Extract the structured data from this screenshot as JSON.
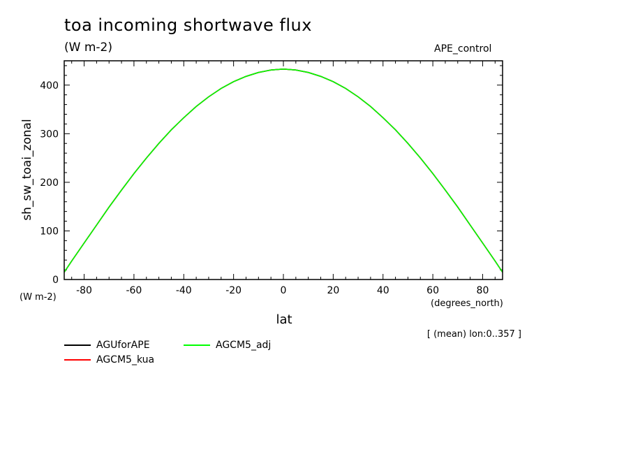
{
  "header": {
    "title": "toa incoming shortwave flux",
    "units": "(W m-2)",
    "experiment": "APE_control"
  },
  "chart_data": {
    "type": "line",
    "xlabel": "lat",
    "x_units": "(degrees_north)",
    "ylabel": "sh_sw_toai_zonal",
    "y_units": "(W m-2)",
    "xlim": [
      -88,
      88
    ],
    "ylim": [
      0,
      450
    ],
    "x_ticks": [
      "-80",
      "-60",
      "-40",
      "-20",
      "0",
      "20",
      "40",
      "60",
      "80"
    ],
    "y_ticks": [
      "0",
      "100",
      "200",
      "300",
      "400"
    ],
    "note": "[ (mean) lon:0..357 ]",
    "legend_placement": "bottom-left",
    "x": [
      -88,
      -85,
      -80,
      -75,
      -70,
      -65,
      -60,
      -55,
      -50,
      -45,
      -40,
      -35,
      -30,
      -25,
      -20,
      -15,
      -10,
      -5,
      0,
      5,
      10,
      15,
      20,
      25,
      30,
      35,
      40,
      45,
      50,
      55,
      60,
      65,
      70,
      75,
      80,
      85,
      88
    ],
    "series": [
      {
        "name": "AGUforAPE",
        "color": "#000000",
        "values": [
          15,
          38,
          75,
          112,
          149,
          184,
          218,
          250,
          280,
          308,
          333,
          356,
          376,
          393,
          407,
          418,
          426,
          431,
          433,
          431,
          426,
          418,
          407,
          393,
          376,
          356,
          333,
          308,
          280,
          250,
          218,
          184,
          149,
          112,
          75,
          38,
          15
        ]
      },
      {
        "name": "AGCM5_kua",
        "color": "#ff0000",
        "values": [
          15,
          38,
          75,
          112,
          149,
          184,
          218,
          250,
          280,
          308,
          333,
          356,
          376,
          393,
          407,
          418,
          426,
          431,
          433,
          431,
          426,
          418,
          407,
          393,
          376,
          356,
          333,
          308,
          280,
          250,
          218,
          184,
          149,
          112,
          75,
          38,
          15
        ]
      },
      {
        "name": "AGCM5_adj",
        "color": "#00ff00",
        "values": [
          15,
          38,
          75,
          112,
          149,
          184,
          218,
          250,
          280,
          308,
          333,
          356,
          376,
          393,
          407,
          418,
          426,
          431,
          433,
          431,
          426,
          418,
          407,
          393,
          376,
          356,
          333,
          308,
          280,
          250,
          218,
          184,
          149,
          112,
          75,
          38,
          15
        ]
      }
    ]
  }
}
